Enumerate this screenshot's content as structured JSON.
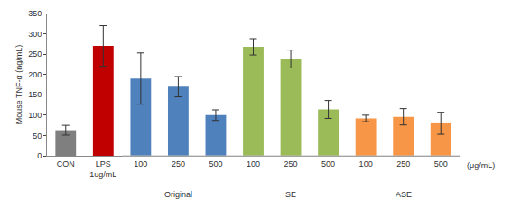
{
  "chart_data": {
    "type": "bar",
    "y_label": "Mouse TNF-α (ng/mL)",
    "categories": [
      "CON",
      "LPS 1ug/mL",
      "100",
      "250",
      "500",
      "100",
      "250",
      "500",
      "100",
      "250",
      "500"
    ],
    "groups": [
      null,
      null,
      "Original",
      "Original",
      "Original",
      "SE",
      "SE",
      "SE",
      "ASE",
      "ASE",
      "ASE"
    ],
    "values": [
      63,
      270,
      190,
      170,
      100,
      268,
      238,
      114,
      92,
      96,
      80
    ],
    "errors": [
      12,
      50,
      63,
      25,
      13,
      20,
      22,
      22,
      8,
      20,
      27
    ],
    "colors": [
      "#7f7f7f",
      "#c00000",
      "#4f81bd",
      "#4f81bd",
      "#4f81bd",
      "#9bbb59",
      "#9bbb59",
      "#9bbb59",
      "#f79646",
      "#f79646",
      "#f79646"
    ],
    "annotations": [
      "(μg/mL)"
    ],
    "ylim": [
      0,
      350
    ],
    "yticks": [
      0,
      50,
      100,
      150,
      200,
      250,
      300,
      350
    ],
    "grid": false
  }
}
